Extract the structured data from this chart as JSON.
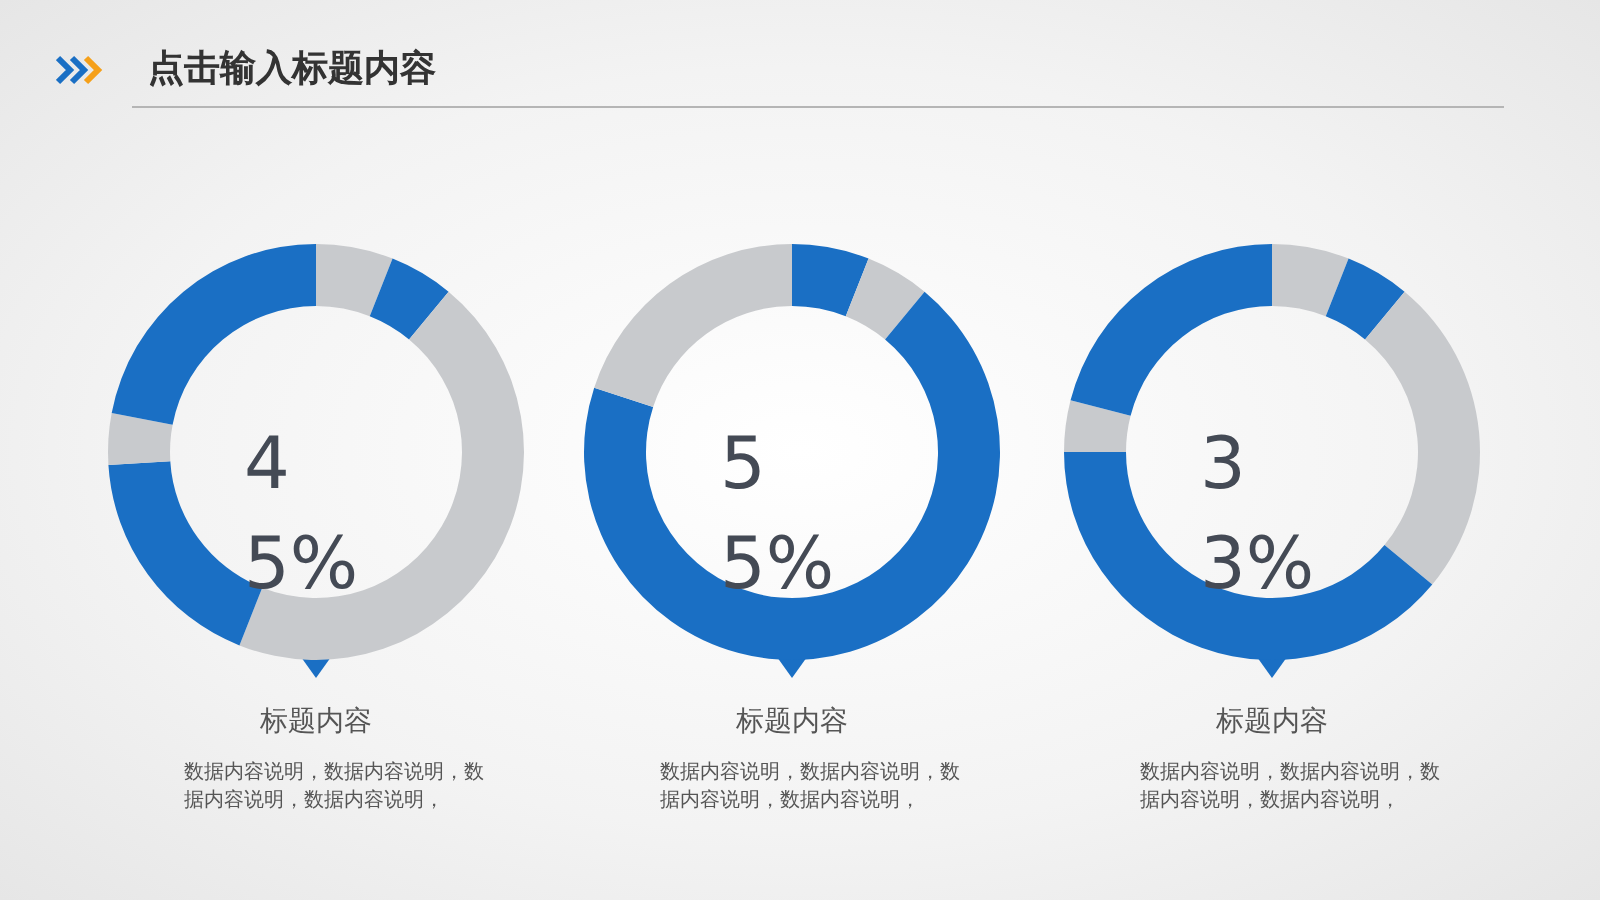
{
  "chart_data": [
    {
      "type": "other",
      "title": "点击输入标题内容"
    },
    {
      "type": "donut",
      "title": "标题内容",
      "categories": [
        null,
        null,
        null,
        null,
        null,
        null
      ],
      "values": [
        6,
        5,
        45,
        18,
        4,
        22
      ],
      "colors": [
        "#c8cacd",
        "#1a6fc4",
        "#c8cacd",
        "#1a6fc4",
        "#c8cacd",
        "#1a6fc4"
      ],
      "annotations": [
        "45%",
        "数据内容说明，数据内容说明，数据内容说明，数据内容说明，"
      ]
    },
    {
      "type": "donut",
      "title": "标题内容",
      "categories": [
        null,
        null,
        null,
        null
      ],
      "values": [
        6,
        5,
        69,
        20
      ],
      "colors": [
        "#1a6fc4",
        "#c8cacd",
        "#1a6fc4",
        "#c8cacd"
      ],
      "annotations": [
        "55%",
        "数据内容说明，数据内容说明，数据内容说明，数据内容说明，"
      ]
    },
    {
      "type": "donut",
      "title": "标题内容",
      "categories": [
        null,
        null,
        null,
        null,
        null,
        null
      ],
      "values": [
        6,
        5,
        25,
        39,
        4,
        21
      ],
      "colors": [
        "#c8cacd",
        "#1a6fc4",
        "#c8cacd",
        "#1a6fc4",
        "#c8cacd",
        "#1a6fc4"
      ],
      "annotations": [
        "33%",
        "数据内容说明，数据内容说明，数据内容说明，数据内容说明，"
      ]
    }
  ]
}
